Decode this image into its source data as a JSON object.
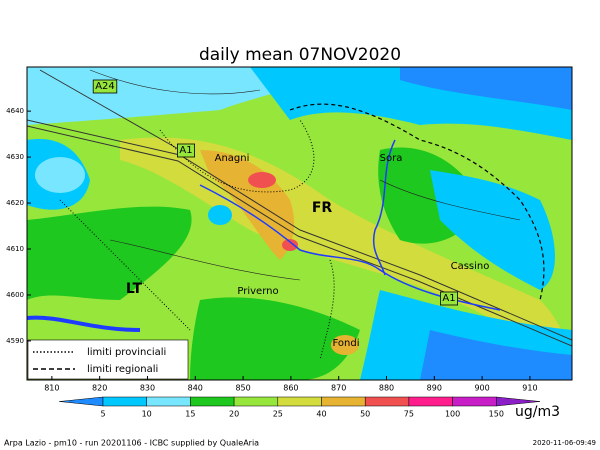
{
  "title": "daily mean 07NOV2020",
  "map": {
    "xlim": [
      804.8,
      918.8
    ],
    "ylim": [
      4581.5,
      4649.6
    ],
    "xticks": [
      810,
      820,
      830,
      840,
      850,
      860,
      870,
      880,
      890,
      900,
      910
    ],
    "yticks": [
      4590,
      4600,
      4610,
      4620,
      4630,
      4640
    ],
    "places": [
      {
        "label": "A24"
      },
      {
        "label": "A1"
      },
      {
        "label": "Anagni"
      },
      {
        "label": "Sora"
      },
      {
        "label": "FR"
      },
      {
        "label": "Cassino"
      },
      {
        "label": "LT"
      },
      {
        "label": "Priverno"
      },
      {
        "label": "A1"
      },
      {
        "label": "Fondi"
      }
    ]
  },
  "legend": {
    "items": [
      "limiti provinciali",
      "limiti regionali"
    ]
  },
  "colorbar": {
    "levels": [
      5,
      10,
      15,
      20,
      25,
      40,
      50,
      75,
      100,
      150
    ],
    "colors": [
      "#1e8cff",
      "#00c8ff",
      "#78e6ff",
      "#1ec81e",
      "#96e63c",
      "#d2dc3c",
      "#e6b432",
      "#f05050",
      "#ff1e8c",
      "#c81ec8",
      "#8c1ec8"
    ],
    "unit": "ug/m3"
  },
  "footer": {
    "left": "Arpa Lazio - pm10 - run 20201106 - ICBC supplied by QualeAria",
    "right": "2020-11-06-09:49"
  }
}
